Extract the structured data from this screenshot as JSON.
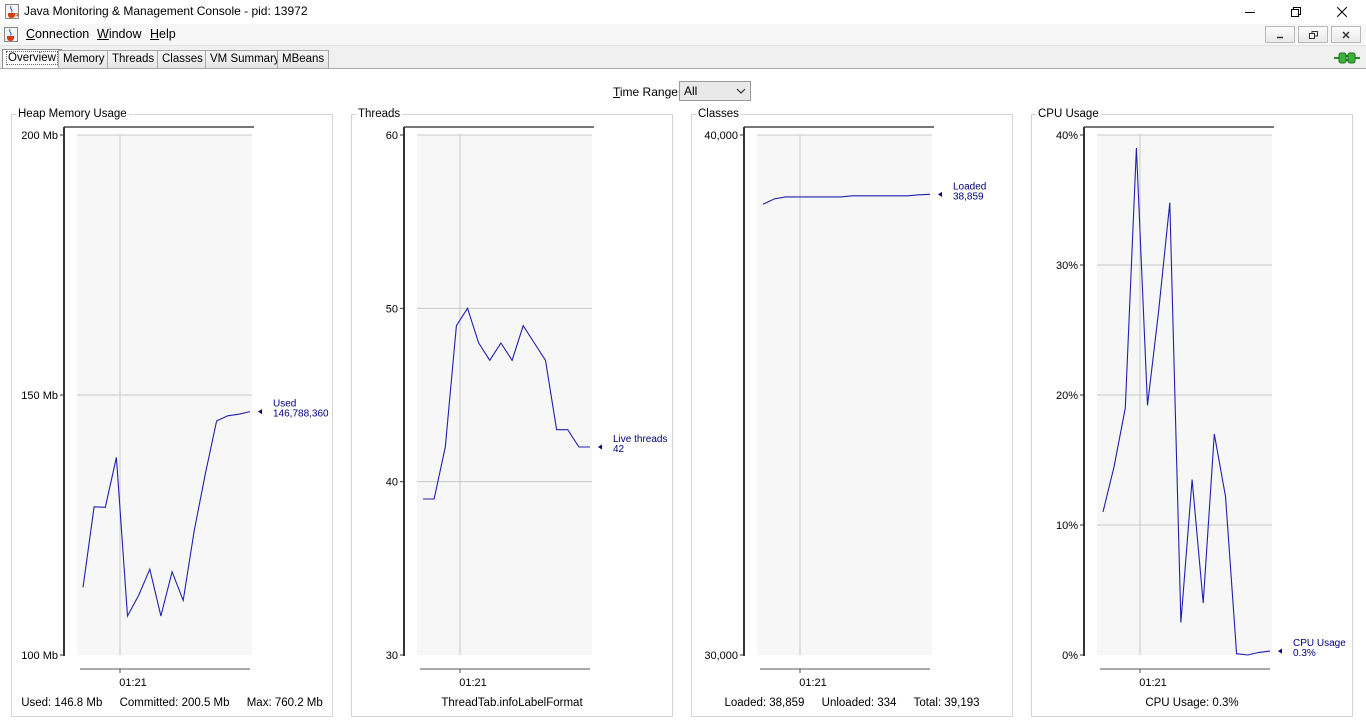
{
  "window": {
    "title": "Java Monitoring & Management Console - pid: 13972"
  },
  "menu": {
    "items": [
      {
        "label": "Connection",
        "mnemonic": "C",
        "rest": "onnection"
      },
      {
        "label": "Window",
        "mnemonic": "W",
        "rest": "indow"
      },
      {
        "label": "Help",
        "mnemonic": "H",
        "rest": "elp"
      }
    ]
  },
  "tabs": [
    {
      "label": "Overview",
      "active": true
    },
    {
      "label": "Memory"
    },
    {
      "label": "Threads"
    },
    {
      "label": "Classes"
    },
    {
      "label": "VM Summary"
    },
    {
      "label": "MBeans"
    }
  ],
  "time_range": {
    "label_mnemonic": "T",
    "label_rest": "ime Range:",
    "selected": "All"
  },
  "colors": {
    "series": "#2020b0",
    "legend_text": "#00007f"
  },
  "panels": {
    "heap": {
      "title": "Heap Memory Usage",
      "info": [
        "Used: 146.8 Mb",
        "Committed: 200.5 Mb",
        "Max: 760.2 Mb"
      ]
    },
    "threads": {
      "title": "Threads",
      "info": [
        "ThreadTab.infoLabelFormat"
      ]
    },
    "classes": {
      "title": "Classes",
      "info": [
        "Loaded: 38,859",
        "Unloaded: 334",
        "Total: 39,193"
      ]
    },
    "cpu": {
      "title": "CPU Usage",
      "info": [
        "CPU Usage: 0.3%"
      ]
    }
  },
  "chart_data": [
    {
      "type": "line",
      "title": "Heap Memory Usage",
      "ylim": [
        100,
        200
      ],
      "yticks": [
        100,
        150,
        200
      ],
      "ytick_labels": [
        "100 Mb",
        "150 Mb",
        "200 Mb"
      ],
      "xtick_labels": [
        "01:21"
      ],
      "series": [
        {
          "name": "Used",
          "current_label": "146,788,360",
          "values": [
            113,
            128.5,
            128.4,
            138,
            107.5,
            111.5,
            116.5,
            107.5,
            116,
            110.5,
            124,
            135,
            145,
            146,
            146.3,
            146.8
          ]
        }
      ]
    },
    {
      "type": "line",
      "title": "Threads",
      "ylim": [
        30,
        60
      ],
      "yticks": [
        30,
        40,
        50,
        60
      ],
      "ytick_labels": [
        "30",
        "40",
        "50",
        "60"
      ],
      "xtick_labels": [
        "01:21"
      ],
      "series": [
        {
          "name": "Live threads",
          "current_label": "42",
          "values": [
            39,
            39,
            42,
            49,
            50,
            48,
            47,
            48,
            47,
            49,
            48,
            47,
            43,
            43,
            42,
            42
          ]
        }
      ]
    },
    {
      "type": "line",
      "title": "Classes",
      "ylim": [
        30000,
        40000
      ],
      "yticks": [
        30000,
        40000
      ],
      "ytick_labels": [
        "30,000",
        "40,000"
      ],
      "xtick_labels": [
        "01:21"
      ],
      "series": [
        {
          "name": "Loaded",
          "current_label": "38,859",
          "values": [
            38670,
            38770,
            38810,
            38810,
            38810,
            38810,
            38810,
            38810,
            38830,
            38830,
            38830,
            38830,
            38830,
            38830,
            38850,
            38859
          ]
        }
      ]
    },
    {
      "type": "line",
      "title": "CPU Usage",
      "ylim": [
        0,
        40
      ],
      "yticks": [
        0,
        10,
        20,
        30,
        40
      ],
      "ytick_labels": [
        "0%",
        "10%",
        "20%",
        "30%",
        "40%"
      ],
      "xtick_labels": [
        "01:21"
      ],
      "series": [
        {
          "name": "CPU Usage",
          "current_label": "0.3%",
          "values": [
            11,
            14.5,
            19,
            39,
            19.2,
            26.5,
            34.8,
            2.5,
            13.5,
            4,
            17,
            12.2,
            0.1,
            0,
            0.2,
            0.3
          ]
        }
      ]
    }
  ]
}
